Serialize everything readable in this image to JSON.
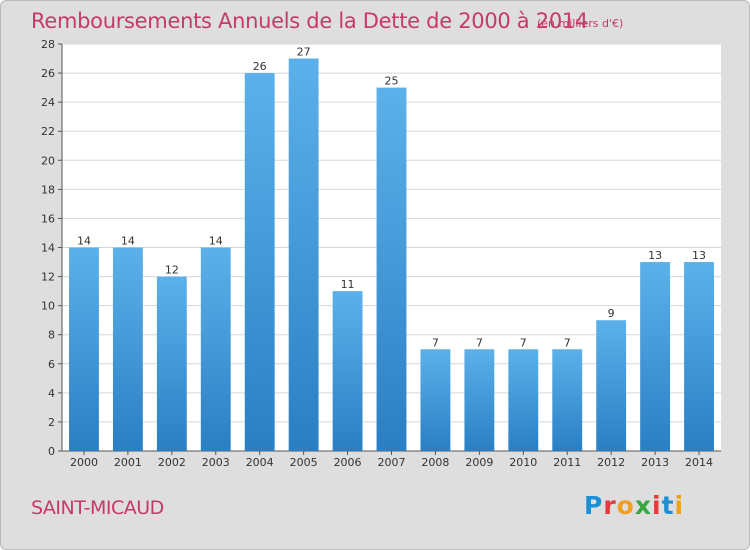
{
  "header": {
    "title": "Remboursements Annuels de la Dette de 2000 à 2014",
    "subtitle": "(en milliers d'€)"
  },
  "footer": {
    "commune": "SAINT-MICAUD",
    "logo_text": "Proxiti",
    "logo_colors": [
      "#1e8fd2",
      "#e23b3b",
      "#f0a020",
      "#3aa640",
      "#e23b3b",
      "#1e8fd2",
      "#f0a020"
    ]
  },
  "colors": {
    "bar_top": "#5cb1ea",
    "bar_bottom": "#2a7fc4",
    "accent": "#c8386a",
    "plot_bg": "#ffffff",
    "frame_bg": "#dedede"
  },
  "chart_data": {
    "type": "bar",
    "title": "Remboursements Annuels de la Dette de 2000 à 2014",
    "subtitle": "(en milliers d'€)",
    "xlabel": "",
    "ylabel": "",
    "categories": [
      "2000",
      "2001",
      "2002",
      "2003",
      "2004",
      "2005",
      "2006",
      "2007",
      "2008",
      "2009",
      "2010",
      "2011",
      "2012",
      "2013",
      "2014"
    ],
    "values": [
      14,
      14,
      12,
      14,
      26,
      27,
      11,
      25,
      7,
      7,
      7,
      7,
      9,
      13,
      13
    ],
    "ylim": [
      0,
      28
    ],
    "yticks": [
      0,
      2,
      4,
      6,
      8,
      10,
      12,
      14,
      16,
      18,
      20,
      22,
      24,
      26,
      28
    ],
    "grid": true,
    "legend": "none"
  }
}
